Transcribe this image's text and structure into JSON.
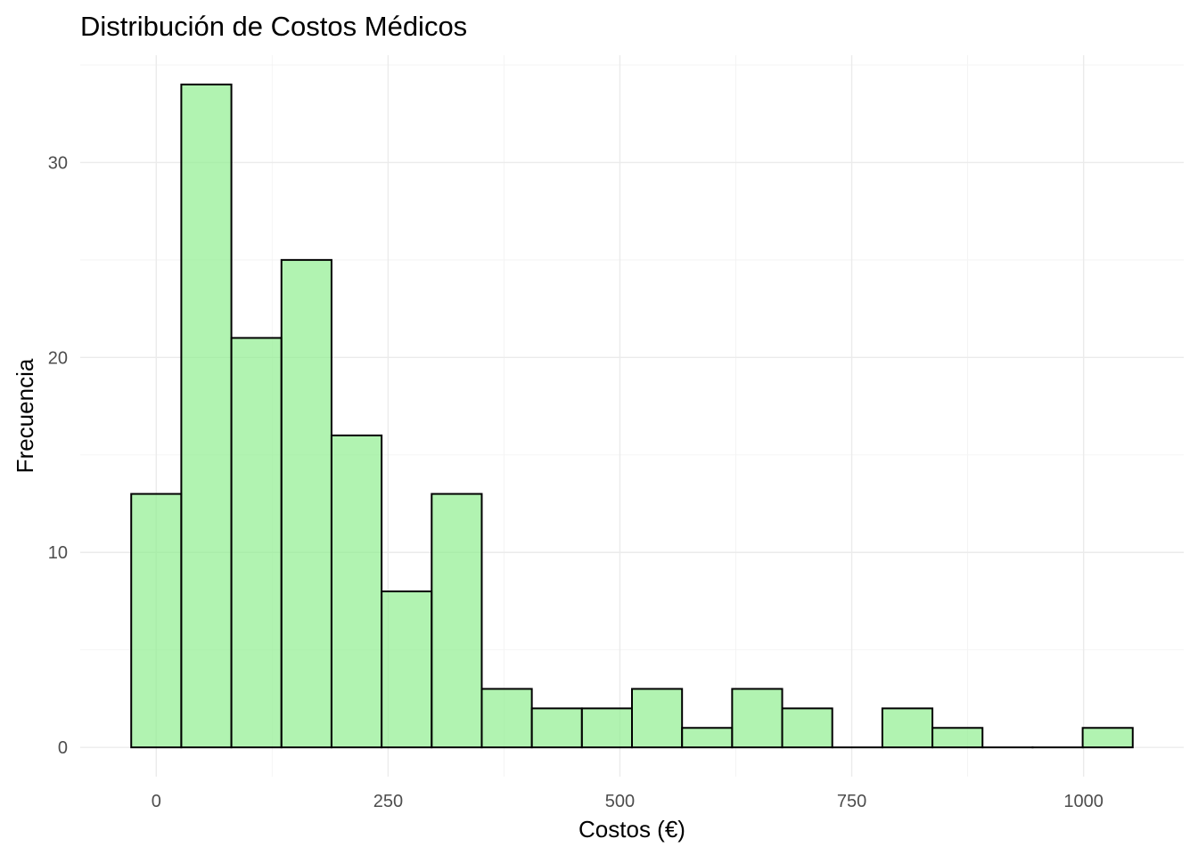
{
  "chart_data": {
    "type": "bar",
    "title": "Distribución de Costos Médicos",
    "xlabel": "Costos (€)",
    "ylabel": "Frecuencia",
    "bin_width": 54,
    "bins": [
      {
        "start": -27,
        "end": 27,
        "count": 13
      },
      {
        "start": 27,
        "end": 81,
        "count": 34
      },
      {
        "start": 81,
        "end": 135,
        "count": 21
      },
      {
        "start": 135,
        "end": 189,
        "count": 25
      },
      {
        "start": 189,
        "end": 243,
        "count": 16
      },
      {
        "start": 243,
        "end": 297,
        "count": 8
      },
      {
        "start": 297,
        "end": 351,
        "count": 13
      },
      {
        "start": 351,
        "end": 405,
        "count": 3
      },
      {
        "start": 405,
        "end": 459,
        "count": 2
      },
      {
        "start": 459,
        "end": 513,
        "count": 2
      },
      {
        "start": 513,
        "end": 567,
        "count": 3
      },
      {
        "start": 567,
        "end": 621,
        "count": 1
      },
      {
        "start": 621,
        "end": 675,
        "count": 3
      },
      {
        "start": 675,
        "end": 729,
        "count": 2
      },
      {
        "start": 729,
        "end": 783,
        "count": 0
      },
      {
        "start": 783,
        "end": 837,
        "count": 2
      },
      {
        "start": 837,
        "end": 891,
        "count": 1
      },
      {
        "start": 891,
        "end": 945,
        "count": 0
      },
      {
        "start": 945,
        "end": 999,
        "count": 0
      },
      {
        "start": 999,
        "end": 1053,
        "count": 1
      }
    ],
    "xlim": [
      -82,
      1108
    ],
    "ylim": [
      -1.5,
      35.5
    ],
    "x_ticks": [
      0,
      250,
      500,
      750,
      1000
    ],
    "x_tick_labels": [
      "0",
      "250",
      "500",
      "750",
      "1000"
    ],
    "y_ticks": [
      0,
      10,
      20,
      30
    ],
    "y_tick_labels": [
      "0",
      "10",
      "20",
      "30"
    ],
    "grid": true,
    "legend": "none",
    "fill_color": "#90ee90",
    "outline_color": "#000000"
  }
}
